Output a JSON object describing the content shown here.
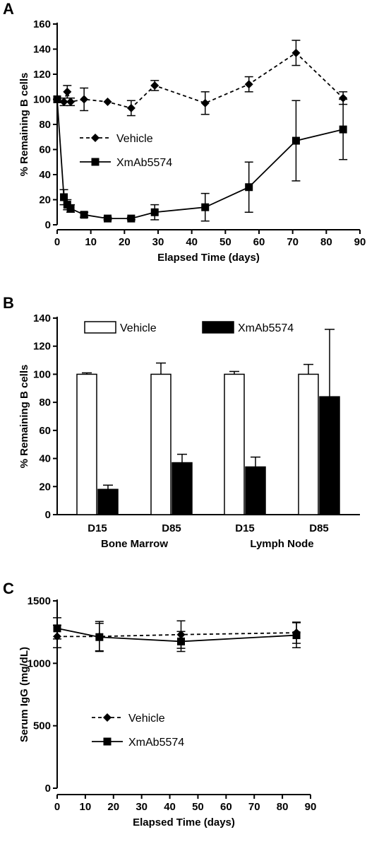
{
  "chart_data": [
    {
      "panel": "A",
      "type": "line",
      "xlabel": "Elapsed Time (days)",
      "ylabel": "% Remaining B cells",
      "xlim": [
        0,
        90
      ],
      "ylim": [
        0,
        160
      ],
      "xticks": [
        0,
        10,
        20,
        30,
        40,
        50,
        60,
        70,
        80,
        90
      ],
      "yticks": [
        0,
        20,
        40,
        60,
        80,
        100,
        120,
        140,
        160
      ],
      "legend": "center-left",
      "series": [
        {
          "name": "Vehicle",
          "line": "dashed",
          "marker": "diamond",
          "x": [
            0,
            2,
            3,
            4,
            8,
            15,
            22,
            29,
            44,
            57,
            71,
            85
          ],
          "y": [
            100,
            98,
            106,
            98,
            100,
            98,
            93,
            111,
            97,
            112,
            137,
            101
          ],
          "err": [
            0,
            3,
            5,
            3,
            9,
            0,
            6,
            4,
            9,
            6,
            10,
            5
          ]
        },
        {
          "name": "XmAb5574",
          "line": "solid",
          "marker": "square",
          "x": [
            0,
            2,
            3,
            4,
            8,
            15,
            22,
            29,
            44,
            57,
            71,
            85
          ],
          "y": [
            100,
            22,
            16,
            13,
            8,
            5,
            5,
            10,
            14,
            30,
            67,
            76
          ],
          "err": [
            0,
            6,
            4,
            3,
            2,
            1,
            1,
            6,
            11,
            20,
            32,
            24
          ]
        }
      ]
    },
    {
      "panel": "B",
      "type": "bar",
      "ylabel": "% Remaining B cells",
      "ylim": [
        0,
        140
      ],
      "yticks": [
        0,
        20,
        40,
        60,
        80,
        100,
        120,
        140
      ],
      "categories": [
        "D15",
        "D85",
        "D15",
        "D85"
      ],
      "groups": [
        "Bone Marrow",
        "Lymph Node"
      ],
      "legend": "top",
      "series": [
        {
          "name": "Vehicle",
          "fill": "white",
          "values": [
            100,
            100,
            100,
            100
          ],
          "err": [
            1,
            8,
            2,
            7
          ]
        },
        {
          "name": "XmAb5574",
          "fill": "black",
          "values": [
            18,
            37,
            34,
            84
          ],
          "err": [
            3,
            6,
            7,
            48
          ]
        }
      ]
    },
    {
      "panel": "C",
      "type": "line",
      "xlabel": "Elapsed Time (days)",
      "ylabel": "Serum IgG (mg/dL)",
      "xlim": [
        0,
        90
      ],
      "ylim": [
        0,
        1500
      ],
      "xticks": [
        0,
        10,
        20,
        30,
        40,
        50,
        60,
        70,
        80,
        90
      ],
      "yticks": [
        0,
        500,
        1000,
        1500
      ],
      "legend": "lower-left",
      "series": [
        {
          "name": "Vehicle",
          "line": "dashed",
          "marker": "diamond",
          "x": [
            0,
            15,
            44,
            85
          ],
          "y": [
            1215,
            1215,
            1230,
            1245
          ],
          "err": [
            90,
            120,
            110,
            85
          ]
        },
        {
          "name": "XmAb5574",
          "line": "solid",
          "marker": "square",
          "x": [
            0,
            15,
            44,
            85
          ],
          "y": [
            1280,
            1210,
            1175,
            1225
          ],
          "err": [
            85,
            110,
            80,
            100
          ]
        }
      ]
    }
  ]
}
